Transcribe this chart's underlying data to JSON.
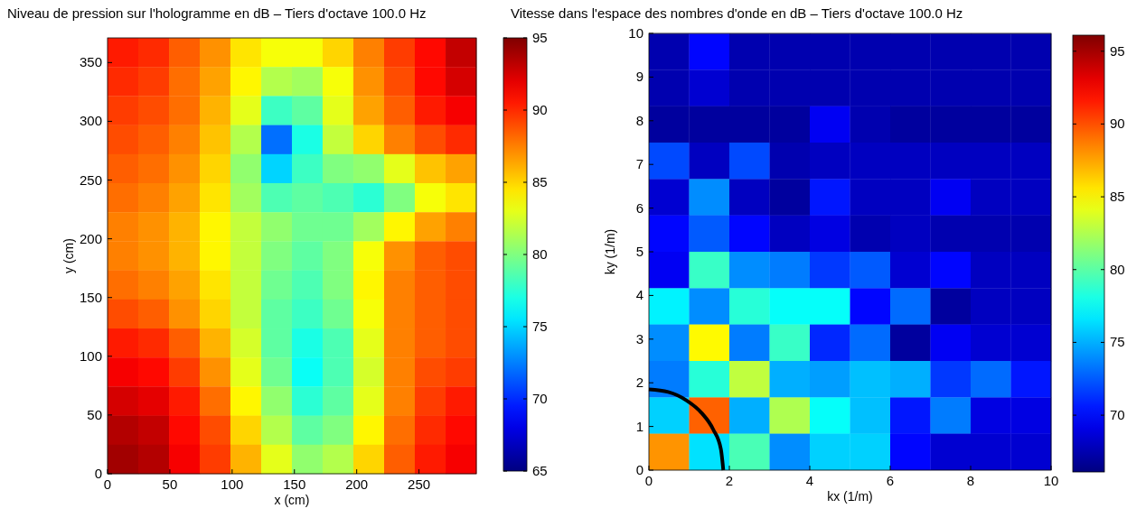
{
  "chart_data": [
    {
      "type": "heatmap",
      "title": "Niveau de pression sur l'hologramme en dB – Tiers d'octave  100.0 Hz",
      "xlabel": "x (cm)",
      "ylabel": "y (cm)",
      "x": [
        12.3,
        37,
        61.7,
        86.3,
        111,
        135.7,
        160.3,
        185,
        209.7,
        234.3,
        259,
        283.7
      ],
      "y": [
        358.6,
        333.9,
        309.2,
        284.4,
        259.7,
        235,
        210.2,
        185.5,
        160.8,
        136,
        111.3,
        86.6,
        61.8,
        37.1,
        12.4
      ],
      "xlim": [
        0,
        296
      ],
      "xticks": [
        0,
        50,
        100,
        150,
        200,
        250
      ],
      "ylim": [
        0,
        371
      ],
      "yticks": [
        0,
        50,
        100,
        150,
        200,
        250,
        300,
        350
      ],
      "clim": [
        65,
        95
      ],
      "cticks": [
        65,
        70,
        75,
        80,
        85,
        90,
        95
      ],
      "cells": [
        [
          90.5,
          90,
          88.5,
          87,
          84.5,
          83.5,
          83.5,
          85,
          87.5,
          89.5,
          91,
          93
        ],
        [
          90,
          89.5,
          88,
          86.5,
          84,
          81.5,
          81,
          83.5,
          87,
          89,
          91,
          92.5
        ],
        [
          89.5,
          89,
          88,
          86,
          83,
          78,
          79,
          83,
          86.5,
          88.5,
          90.5,
          91.5
        ],
        [
          89,
          88.5,
          87.5,
          85.5,
          81.5,
          72,
          77,
          82,
          85,
          87.5,
          89,
          90
        ],
        [
          88.5,
          88,
          87,
          85,
          80.5,
          75,
          78,
          80,
          80.5,
          83,
          85.5,
          86.5
        ],
        [
          88,
          87.5,
          86.5,
          84.5,
          81,
          78.5,
          79,
          78.5,
          77.5,
          80,
          83.5,
          84.5
        ],
        [
          87.5,
          87,
          86,
          84,
          82,
          80.5,
          79.5,
          79.5,
          81,
          84,
          86.5,
          87.5
        ],
        [
          87.5,
          87,
          86,
          84,
          82,
          80,
          79,
          80,
          83.5,
          87,
          88.5,
          89
        ],
        [
          88,
          87.5,
          86.5,
          84.5,
          82,
          79.5,
          78.5,
          80,
          84,
          87.5,
          88.5,
          89
        ],
        [
          89,
          88.5,
          87,
          85,
          82,
          79,
          78,
          79.5,
          83.5,
          87.5,
          88.5,
          89
        ],
        [
          90.5,
          90,
          88.5,
          86,
          82.5,
          79,
          77,
          78.5,
          83,
          87.5,
          88.5,
          89
        ],
        [
          91.5,
          91,
          89.5,
          87,
          83,
          79.5,
          76.5,
          78.5,
          82.5,
          87.5,
          89,
          89.5
        ],
        [
          92.5,
          92,
          90.5,
          88,
          84,
          80.5,
          77.5,
          79,
          83,
          87.5,
          89.5,
          90.5
        ],
        [
          93.5,
          93,
          91,
          89,
          85,
          81.5,
          79,
          80,
          84,
          88,
          90,
          91
        ],
        [
          94,
          93.5,
          91.5,
          89.5,
          86,
          83,
          80.5,
          81.5,
          85,
          88.5,
          90.5,
          91.5
        ]
      ]
    },
    {
      "type": "heatmap",
      "title": "Vitesse dans l'espace des nombres d'onde en dB – Tiers d'octave  100.0 Hz",
      "xlabel": "kx (1/m)",
      "ylabel": "ky (1/m)",
      "x": [
        0.5,
        1.5,
        2.5,
        3.5,
        4.5,
        5.5,
        6.5,
        7.5,
        8.5,
        9.5
      ],
      "y": [
        9.58,
        8.75,
        7.92,
        7.08,
        6.25,
        5.42,
        4.58,
        3.75,
        2.92,
        2.08,
        1.25,
        0.42
      ],
      "xlim": [
        0,
        10
      ],
      "xticks": [
        0,
        2,
        4,
        6,
        8,
        10
      ],
      "ylim": [
        0,
        10
      ],
      "yticks": [
        0,
        1,
        2,
        3,
        4,
        5,
        6,
        7,
        8,
        9,
        10
      ],
      "clim": [
        66.1,
        96.1
      ],
      "cticks": [
        70,
        75,
        80,
        85,
        90,
        95
      ],
      "cells": [
        [
          67.5,
          70,
          67.5,
          67.5,
          67.5,
          67.5,
          67.5,
          67.5,
          67.5,
          67.5
        ],
        [
          67.5,
          68.5,
          67.5,
          67.5,
          67.5,
          67.5,
          67.5,
          67.5,
          67.5,
          67.5
        ],
        [
          67,
          67,
          67,
          67,
          69.5,
          67.5,
          67,
          67,
          67,
          67
        ],
        [
          72,
          68,
          72,
          67.5,
          68,
          68,
          68,
          68,
          68,
          68
        ],
        [
          68.5,
          74,
          68,
          67,
          70.5,
          68,
          68,
          69.5,
          68,
          68
        ],
        [
          70,
          72.5,
          70,
          68,
          69,
          67.5,
          68,
          67.5,
          67.5,
          67.5
        ],
        [
          69.5,
          79,
          74,
          73.5,
          71.5,
          72.5,
          68.5,
          70,
          68,
          68
        ],
        [
          77,
          74,
          78.5,
          77.5,
          77.5,
          70,
          73,
          67,
          68,
          68
        ],
        [
          74,
          85,
          73.5,
          79,
          71,
          73,
          67,
          69.5,
          68.5,
          68.5
        ],
        [
          73.5,
          78.5,
          83,
          75,
          74.5,
          75.5,
          75,
          71.5,
          73,
          70.5
        ],
        [
          76,
          89.5,
          75,
          82.5,
          77.5,
          75.5,
          70.5,
          73.5,
          69,
          69
        ],
        [
          88,
          76.5,
          79.5,
          74,
          76,
          76,
          70,
          68.5,
          68.5,
          68.5
        ]
      ],
      "series": [
        {
          "type": "line",
          "color": "#000000",
          "x": [
            0,
            0.48,
            0.93,
            1.31,
            1.6,
            1.79,
            1.85
          ],
          "values": [
            1.85,
            1.79,
            1.6,
            1.31,
            0.93,
            0.48,
            0
          ]
        }
      ]
    }
  ]
}
